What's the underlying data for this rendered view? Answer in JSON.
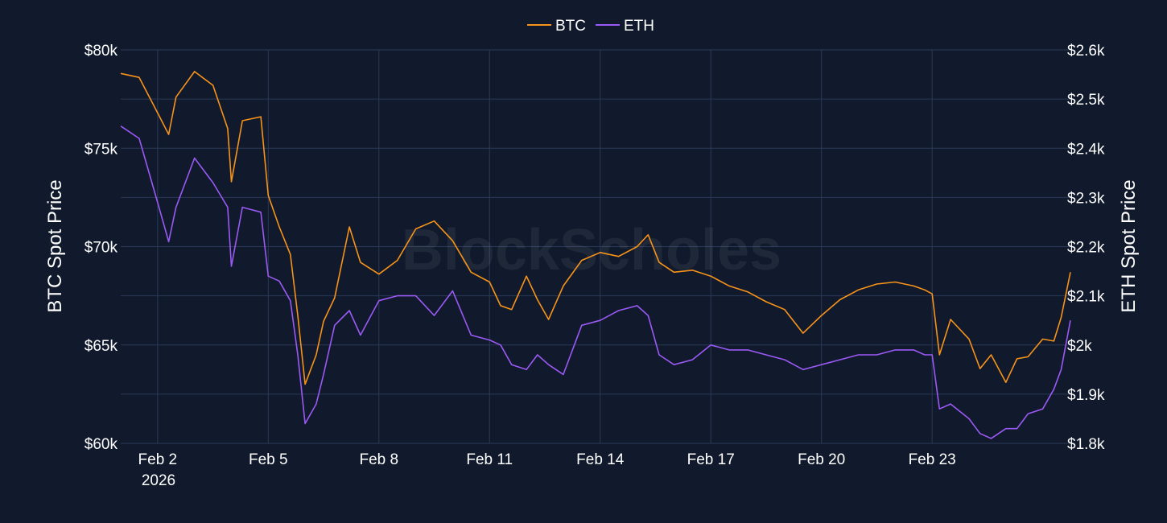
{
  "chart_data": {
    "type": "line",
    "watermark": "BlockScholes",
    "x_tick_labels": [
      "Feb 2",
      "Feb 5",
      "Feb 8",
      "Feb 11",
      "Feb 14",
      "Feb 17",
      "Feb 20",
      "Feb 23"
    ],
    "x_tick_days": [
      2,
      5,
      8,
      11,
      14,
      17,
      20,
      23
    ],
    "x_year_label": "2026",
    "x_range_days": [
      1.0,
      26.75
    ],
    "ylabel_left": "BTC Spot Price",
    "ylabel_right": "ETH Spot Price",
    "y_left_ticks": [
      "$60k",
      "$65k",
      "$70k",
      "$75k",
      "$80k"
    ],
    "y_left_range": [
      60000,
      80000
    ],
    "y_right_ticks": [
      "$1.8k",
      "$1.9k",
      "$2k",
      "$2.1k",
      "$2.2k",
      "$2.3k",
      "$2.4k",
      "$2.5k",
      "$2.6k"
    ],
    "y_right_range": [
      1800,
      2600
    ],
    "grid": true,
    "legend_position": "top-center",
    "series": [
      {
        "name": "BTC",
        "axis": "left",
        "color": "#f7931a",
        "x": [
          1.0,
          1.5,
          2.0,
          2.3,
          2.5,
          3.0,
          3.5,
          3.9,
          4.0,
          4.3,
          4.8,
          5.0,
          5.3,
          5.6,
          5.8,
          6.0,
          6.3,
          6.5,
          6.8,
          7.2,
          7.5,
          8.0,
          8.5,
          9.0,
          9.5,
          10.0,
          10.5,
          11.0,
          11.3,
          11.6,
          12.0,
          12.3,
          12.6,
          13.0,
          13.5,
          14.0,
          14.5,
          15.0,
          15.3,
          15.6,
          16.0,
          16.5,
          17.0,
          17.5,
          18.0,
          18.5,
          19.0,
          19.5,
          20.0,
          20.5,
          21.0,
          21.5,
          22.0,
          22.5,
          22.8,
          23.0,
          23.2,
          23.5,
          24.0,
          24.3,
          24.6,
          25.0,
          25.3,
          25.6,
          26.0,
          26.3,
          26.5,
          26.75
        ],
        "y": [
          78800,
          78600,
          76800,
          75700,
          77600,
          78900,
          78200,
          76000,
          73300,
          76400,
          76600,
          72600,
          71000,
          69600,
          66500,
          63000,
          64500,
          66200,
          67400,
          71000,
          69200,
          68600,
          69300,
          70900,
          71300,
          70300,
          68700,
          68200,
          67000,
          66800,
          68500,
          67300,
          66300,
          68000,
          69300,
          69700,
          69500,
          70000,
          70600,
          69200,
          68700,
          68800,
          68500,
          68000,
          67700,
          67200,
          66800,
          65600,
          66500,
          67300,
          67800,
          68100,
          68200,
          68000,
          67800,
          67600,
          64500,
          66300,
          65300,
          63800,
          64500,
          63100,
          64300,
          64400,
          65300,
          65200,
          66400,
          68700
        ]
      },
      {
        "name": "ETH",
        "axis": "right",
        "color": "#9b59f5",
        "x": [
          1.0,
          1.5,
          2.0,
          2.3,
          2.5,
          3.0,
          3.5,
          3.9,
          4.0,
          4.3,
          4.8,
          5.0,
          5.3,
          5.6,
          5.8,
          6.0,
          6.3,
          6.5,
          6.8,
          7.2,
          7.5,
          8.0,
          8.5,
          9.0,
          9.5,
          10.0,
          10.5,
          11.0,
          11.3,
          11.6,
          12.0,
          12.3,
          12.6,
          13.0,
          13.5,
          14.0,
          14.5,
          15.0,
          15.3,
          15.6,
          16.0,
          16.5,
          17.0,
          17.5,
          18.0,
          18.5,
          19.0,
          19.5,
          20.0,
          20.5,
          21.0,
          21.5,
          22.0,
          22.5,
          22.8,
          23.0,
          23.2,
          23.5,
          24.0,
          24.3,
          24.6,
          25.0,
          25.3,
          25.6,
          26.0,
          26.3,
          26.5,
          26.75
        ],
        "y": [
          2445,
          2420,
          2290,
          2210,
          2280,
          2380,
          2330,
          2280,
          2160,
          2280,
          2270,
          2140,
          2130,
          2090,
          1980,
          1840,
          1880,
          1940,
          2040,
          2070,
          2020,
          2090,
          2100,
          2100,
          2060,
          2110,
          2020,
          2010,
          2000,
          1960,
          1950,
          1980,
          1960,
          1940,
          2040,
          2050,
          2070,
          2080,
          2060,
          1980,
          1960,
          1970,
          2000,
          1990,
          1990,
          1980,
          1970,
          1950,
          1960,
          1970,
          1980,
          1980,
          1990,
          1990,
          1980,
          1980,
          1870,
          1880,
          1850,
          1820,
          1810,
          1830,
          1830,
          1860,
          1870,
          1910,
          1950,
          2050
        ]
      }
    ]
  }
}
